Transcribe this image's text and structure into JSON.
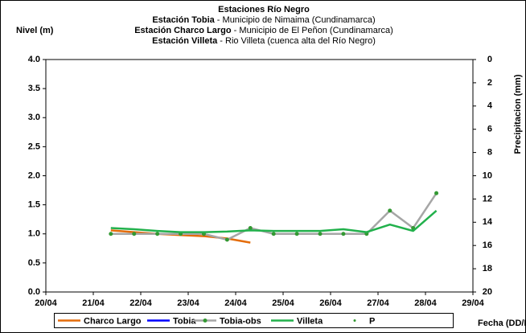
{
  "chart_data": {
    "type": "line",
    "title": "Estaciones Río Negro",
    "subtitle_lines": [
      {
        "station": "Estación Tobia",
        "desc": " - Municipio de Nimaima (Cundinamarca)"
      },
      {
        "station": "Estación Charco Largo",
        "desc": " - Municipio de El Peñon (Cundinamarca)"
      },
      {
        "station": "Estación Villeta",
        "desc": " -  Rio Villeta (cuenca alta del Río Negro)"
      }
    ],
    "y_label": "Nivel (m)",
    "y2_label": "Precipitacion (mm)",
    "x_label": "Fecha (DD/M/AA)",
    "xlim": [
      20,
      29
    ],
    "xticks": [
      {
        "value": 20,
        "label": "20/04"
      },
      {
        "value": 21,
        "label": "21/04"
      },
      {
        "value": 22,
        "label": "22/04"
      },
      {
        "value": 23,
        "label": "23/04"
      },
      {
        "value": 24,
        "label": "24/04"
      },
      {
        "value": 25,
        "label": "25/04"
      },
      {
        "value": 26,
        "label": "26/04"
      },
      {
        "value": 27,
        "label": "27/04"
      },
      {
        "value": 28,
        "label": "28/04"
      },
      {
        "value": 29,
        "label": "29/04"
      }
    ],
    "ylim": [
      0,
      4
    ],
    "yticks": [
      {
        "value": 0,
        "label": "0.0"
      },
      {
        "value": 0.5,
        "label": "0.5"
      },
      {
        "value": 1,
        "label": "1.0"
      },
      {
        "value": 1.5,
        "label": "1.5"
      },
      {
        "value": 2,
        "label": "2.0"
      },
      {
        "value": 2.5,
        "label": "2.5"
      },
      {
        "value": 3,
        "label": "3.0"
      },
      {
        "value": 3.5,
        "label": "3.5"
      },
      {
        "value": 4,
        "label": "4.0"
      }
    ],
    "y2lim": [
      20,
      0
    ],
    "y2ticks": [
      0,
      2,
      4,
      6,
      8,
      10,
      12,
      14,
      16,
      18,
      20
    ],
    "grid": false,
    "legend": "bottom",
    "series": [
      {
        "name": "Charco Largo",
        "color": "#e46c0a",
        "marker": false,
        "x": [
          21.37,
          21.86,
          22.35,
          22.84,
          23.33,
          23.82,
          24.31
        ],
        "values": [
          1.06,
          1.03,
          1.0,
          0.98,
          0.96,
          0.92,
          0.85
        ]
      },
      {
        "name": "Tobia",
        "color": "#0000ff",
        "marker": false,
        "x": [],
        "values": []
      },
      {
        "name": "Tobia-obs",
        "color": "#a6a6a6",
        "marker": true,
        "marker_color": "#339933",
        "x": [
          21.37,
          21.86,
          22.35,
          22.84,
          23.33,
          23.82,
          24.31,
          24.8,
          25.29,
          25.78,
          26.27,
          26.76,
          27.25,
          27.74,
          28.23
        ],
        "values": [
          1.0,
          1.0,
          1.0,
          1.0,
          1.0,
          0.9,
          1.1,
          1.0,
          1.0,
          1.0,
          1.0,
          1.0,
          1.4,
          1.1,
          1.7
        ]
      },
      {
        "name": "Villeta",
        "color": "#22b14c",
        "marker": false,
        "x": [
          21.37,
          21.86,
          22.35,
          22.84,
          23.33,
          23.82,
          24.31,
          24.8,
          25.29,
          25.78,
          26.27,
          26.76,
          27.25,
          27.74,
          28.23
        ],
        "values": [
          1.1,
          1.08,
          1.05,
          1.03,
          1.03,
          1.04,
          1.06,
          1.05,
          1.05,
          1.05,
          1.08,
          1.03,
          1.16,
          1.05,
          1.4
        ]
      },
      {
        "name": "P",
        "color": "#339933",
        "marker": true,
        "line": false,
        "axis": "y2",
        "x": [],
        "values": []
      }
    ]
  }
}
